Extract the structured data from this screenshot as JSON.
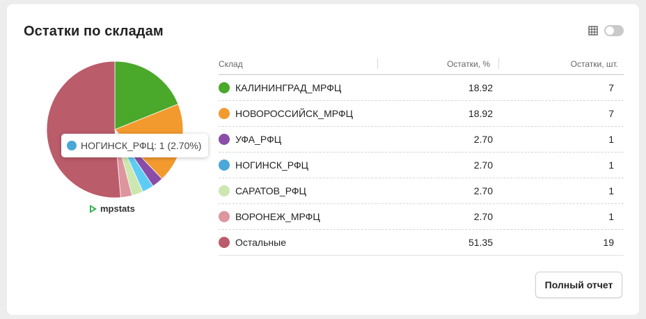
{
  "widget": {
    "title": "Остатки по складам",
    "button_label": "Полный отчет",
    "brand": "mpstats",
    "toggle_on": false
  },
  "tooltip": {
    "label": "НОГИНСК_РФЦ: 1 (2.70%)",
    "color": "#4aa8d8"
  },
  "table": {
    "headers": [
      "Склад",
      "Остатки, %",
      "Остатки, шт."
    ],
    "rows": [
      {
        "name": "КАЛИНИНГРАД_МРФЦ",
        "pct": "18.92",
        "qty": "7",
        "color": "#4aa82a"
      },
      {
        "name": "НОВОРОССИЙСК_МРФЦ",
        "pct": "18.92",
        "qty": "7",
        "color": "#f39a2f"
      },
      {
        "name": "УФА_РФЦ",
        "pct": "2.70",
        "qty": "1",
        "color": "#8a4ea8"
      },
      {
        "name": "НОГИНСК_РФЦ",
        "pct": "2.70",
        "qty": "1",
        "color": "#4aa8d8"
      },
      {
        "name": "САРАТОВ_РФЦ",
        "pct": "2.70",
        "qty": "1",
        "color": "#cde7b0"
      },
      {
        "name": "ВОРОНЕЖ_МРФЦ",
        "pct": "2.70",
        "qty": "1",
        "color": "#dd959e"
      },
      {
        "name": "Остальные",
        "pct": "51.35",
        "qty": "19",
        "color": "#bb5c6a"
      }
    ]
  },
  "chart_data": {
    "type": "pie",
    "categories": [
      "КАЛИНИНГРАД_МРФЦ",
      "НОВОРОССИЙСК_МРФЦ",
      "УФА_РФЦ",
      "НОГИНСК_РФЦ",
      "САРАТОВ_РФЦ",
      "ВОРОНЕЖ_МРФЦ",
      "Остальные"
    ],
    "values": [
      18.92,
      18.92,
      2.7,
      2.7,
      2.7,
      2.7,
      51.35
    ],
    "colors": [
      "#4aa82a",
      "#f39a2f",
      "#8a4ea8",
      "#5dcdf5",
      "#cde7b0",
      "#dd959e",
      "#bb5c6a"
    ],
    "highlighted": "НОГИНСК_РФЦ"
  }
}
